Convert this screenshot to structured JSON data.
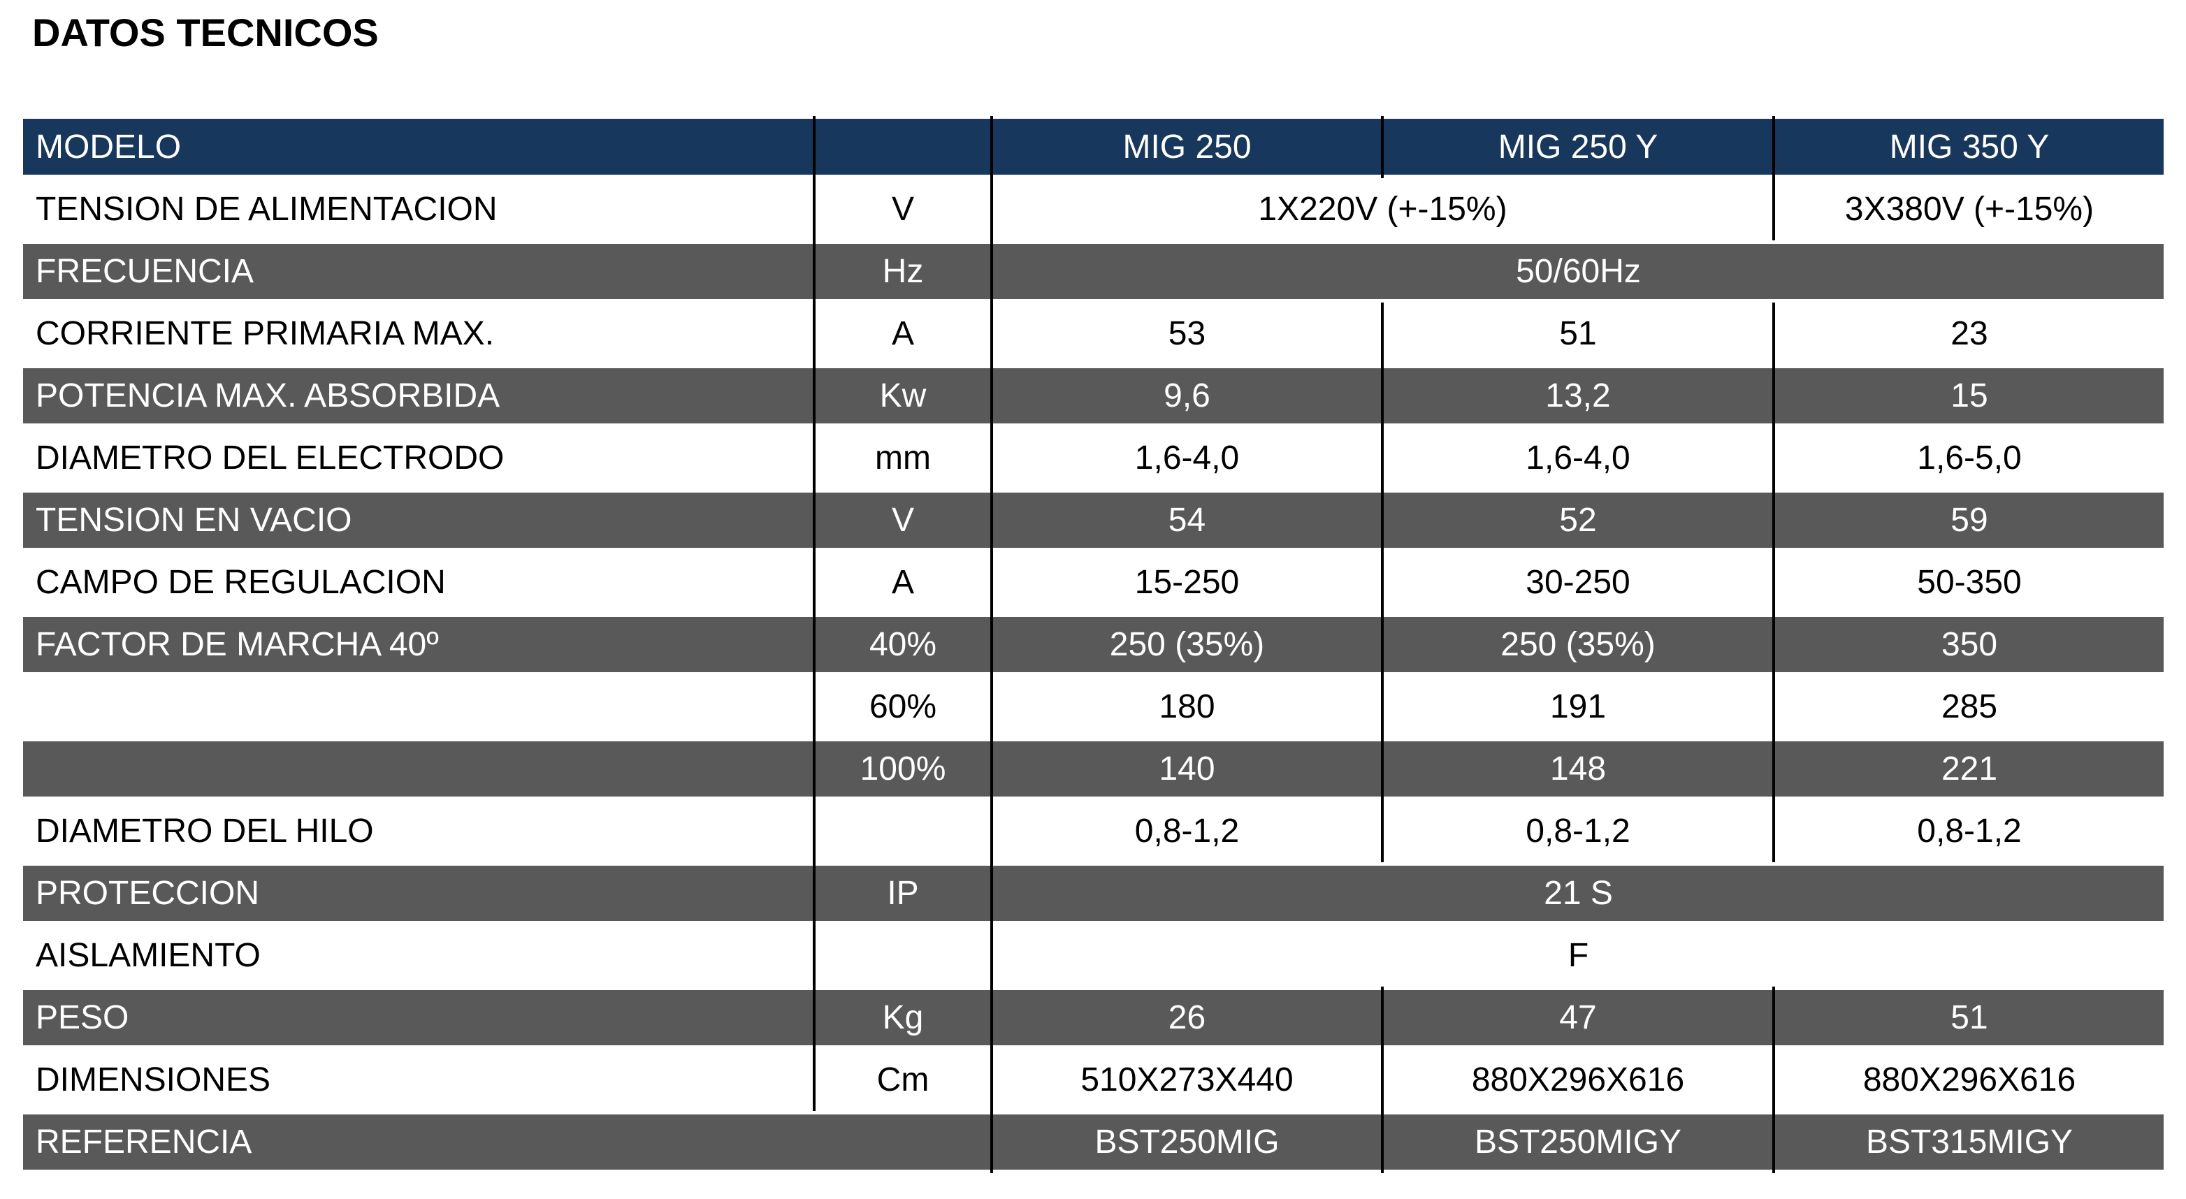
{
  "title": "DATOS TECNICOS",
  "colors": {
    "header_bg": "#17375d",
    "alt_row_bg": "#595959",
    "row_bg": "#ffffff",
    "grid_line": "#000000",
    "text_light": "#ffffff",
    "text_dark": "#000000"
  },
  "table": {
    "header": {
      "label": "MODELO",
      "unit": "",
      "models": [
        "MIG 250",
        "MIG 250 Y",
        "MIG 350 Y"
      ]
    },
    "rows": [
      {
        "label": "TENSION DE ALIMENTACION",
        "unit": "V",
        "cells": [
          {
            "text": "1X220V (+-15%)",
            "span": 2
          },
          {
            "text": "3X380V (+-15%)",
            "span": 1
          }
        ]
      },
      {
        "label": "FRECUENCIA",
        "unit": "Hz",
        "cells": [
          {
            "text": "50/60Hz",
            "span": 3
          }
        ]
      },
      {
        "label": "CORRIENTE PRIMARIA MAX.",
        "unit": "A",
        "cells": [
          {
            "text": "53",
            "span": 1
          },
          {
            "text": "51",
            "span": 1
          },
          {
            "text": "23",
            "span": 1
          }
        ]
      },
      {
        "label": "POTENCIA MAX. ABSORBIDA",
        "unit": "Kw",
        "cells": [
          {
            "text": "9,6",
            "span": 1
          },
          {
            "text": "13,2",
            "span": 1
          },
          {
            "text": "15",
            "span": 1
          }
        ]
      },
      {
        "label": "DIAMETRO DEL ELECTRODO",
        "unit": "mm",
        "cells": [
          {
            "text": "1,6-4,0",
            "span": 1
          },
          {
            "text": "1,6-4,0",
            "span": 1
          },
          {
            "text": "1,6-5,0",
            "span": 1
          }
        ]
      },
      {
        "label": "TENSION EN VACIO",
        "unit": "V",
        "cells": [
          {
            "text": "54",
            "span": 1
          },
          {
            "text": "52",
            "span": 1
          },
          {
            "text": "59",
            "span": 1
          }
        ]
      },
      {
        "label": "CAMPO DE REGULACION",
        "unit": "A",
        "cells": [
          {
            "text": "15-250",
            "span": 1
          },
          {
            "text": "30-250",
            "span": 1
          },
          {
            "text": "50-350",
            "span": 1
          }
        ]
      },
      {
        "label": "FACTOR DE MARCHA 40º",
        "unit": "40%",
        "cells": [
          {
            "text": "250 (35%)",
            "span": 1
          },
          {
            "text": "250 (35%)",
            "span": 1
          },
          {
            "text": "350",
            "span": 1
          }
        ]
      },
      {
        "label": "",
        "unit": "60%",
        "cells": [
          {
            "text": "180",
            "span": 1
          },
          {
            "text": "191",
            "span": 1
          },
          {
            "text": "285",
            "span": 1
          }
        ]
      },
      {
        "label": "",
        "unit": "100%",
        "cells": [
          {
            "text": "140",
            "span": 1
          },
          {
            "text": "148",
            "span": 1
          },
          {
            "text": "221",
            "span": 1
          }
        ]
      },
      {
        "label": "DIAMETRO DEL HILO",
        "unit": "",
        "cells": [
          {
            "text": "0,8-1,2",
            "span": 1
          },
          {
            "text": "0,8-1,2",
            "span": 1
          },
          {
            "text": "0,8-1,2",
            "span": 1
          }
        ]
      },
      {
        "label": "PROTECCION",
        "unit": "IP",
        "cells": [
          {
            "text": "21 S",
            "span": 3
          }
        ]
      },
      {
        "label": "AISLAMIENTO",
        "unit": "",
        "cells": [
          {
            "text": "F",
            "span": 3
          }
        ]
      },
      {
        "label": "PESO",
        "unit": "Kg",
        "cells": [
          {
            "text": "26",
            "span": 1
          },
          {
            "text": "47",
            "span": 1
          },
          {
            "text": "51",
            "span": 1
          }
        ]
      },
      {
        "label": "DIMENSIONES",
        "unit": "Cm",
        "cells": [
          {
            "text": "510X273X440",
            "span": 1
          },
          {
            "text": "880X296X616",
            "span": 1
          },
          {
            "text": "880X296X616",
            "span": 1
          }
        ]
      },
      {
        "label": "REFERENCIA",
        "label_span": 2,
        "cells": [
          {
            "text": "BST250MIG",
            "span": 1
          },
          {
            "text": "BST250MIGY",
            "span": 1
          },
          {
            "text": "BST315MIGY",
            "span": 1
          }
        ]
      }
    ]
  }
}
